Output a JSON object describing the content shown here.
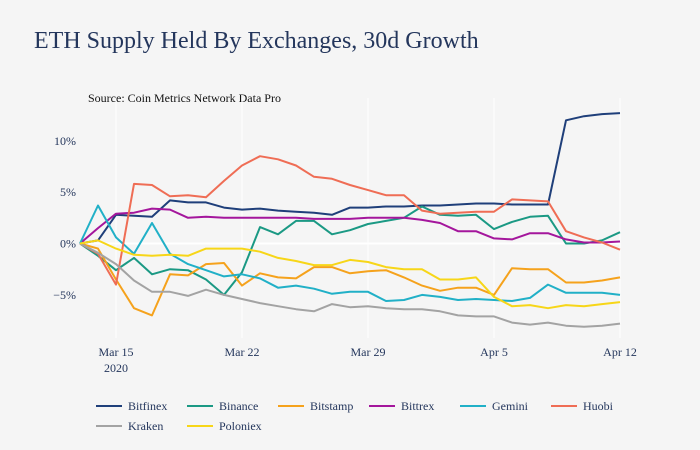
{
  "chart_data": {
    "type": "line",
    "title": "ETH Supply Held By Exchanges, 30d Growth",
    "subtitle": "Source: Coin Metrics Network Data Pro",
    "x": [
      "2020-03-13",
      "2020-03-14",
      "2020-03-15",
      "2020-03-16",
      "2020-03-17",
      "2020-03-18",
      "2020-03-19",
      "2020-03-20",
      "2020-03-21",
      "2020-03-22",
      "2020-03-23",
      "2020-03-24",
      "2020-03-25",
      "2020-03-26",
      "2020-03-27",
      "2020-03-28",
      "2020-03-29",
      "2020-03-30",
      "2020-03-31",
      "2020-04-01",
      "2020-04-02",
      "2020-04-03",
      "2020-04-04",
      "2020-04-05",
      "2020-04-06",
      "2020-04-07",
      "2020-04-08",
      "2020-04-09",
      "2020-04-10",
      "2020-04-11",
      "2020-04-12"
    ],
    "x_tick_labels": [
      "Mar 15",
      "Mar 22",
      "Mar 29",
      "Apr 5",
      "Apr 12"
    ],
    "x_tick_year": "2020",
    "x_tick_dates": [
      "2020-03-15",
      "2020-03-22",
      "2020-03-29",
      "2020-04-05",
      "2020-04-12"
    ],
    "y_ticks": [
      -5,
      0,
      5,
      10
    ],
    "y_tick_labels": [
      "−5%",
      "0%",
      "5%",
      "10%"
    ],
    "ylim": [
      -9.2,
      13
    ],
    "grid": "vertical",
    "legend_position": "bottom",
    "series": [
      {
        "name": "Bitfinex",
        "color": "#1f3f7a",
        "values": [
          0,
          0.3,
          2.8,
          2.7,
          2.6,
          4.2,
          4.0,
          4.0,
          3.5,
          3.3,
          3.4,
          3.2,
          3.1,
          3.0,
          2.8,
          3.5,
          3.5,
          3.6,
          3.6,
          3.7,
          3.7,
          3.8,
          3.9,
          3.9,
          3.8,
          3.8,
          3.8,
          12.0,
          12.4,
          12.6,
          12.7
        ]
      },
      {
        "name": "Binance",
        "color": "#1b9984",
        "values": [
          0,
          -1.2,
          -2.6,
          -1.4,
          -3.0,
          -2.5,
          -2.6,
          -3.5,
          -5.0,
          -2.8,
          1.6,
          0.9,
          2.2,
          2.2,
          0.9,
          1.3,
          1.9,
          2.2,
          2.5,
          3.6,
          2.8,
          2.7,
          2.8,
          1.4,
          2.1,
          2.6,
          2.7,
          0.0,
          0.0,
          0.3,
          1.1
        ]
      },
      {
        "name": "Bitstamp",
        "color": "#f5a21c",
        "values": [
          0,
          -0.5,
          -3.5,
          -6.3,
          -7.0,
          -3.0,
          -3.1,
          -2.0,
          -1.9,
          -4.1,
          -2.9,
          -3.3,
          -3.4,
          -2.3,
          -2.3,
          -2.9,
          -2.7,
          -2.6,
          -3.3,
          -4.1,
          -4.6,
          -4.3,
          -4.3,
          -5.0,
          -2.4,
          -2.5,
          -2.5,
          -3.8,
          -3.8,
          -3.6,
          -3.3
        ]
      },
      {
        "name": "Bittrex",
        "color": "#a4169c",
        "values": [
          0,
          1.5,
          2.9,
          3.0,
          3.4,
          3.3,
          2.5,
          2.6,
          2.5,
          2.5,
          2.5,
          2.5,
          2.5,
          2.4,
          2.4,
          2.4,
          2.5,
          2.5,
          2.5,
          2.3,
          2.0,
          1.2,
          1.2,
          0.5,
          0.4,
          1.0,
          1.0,
          0.4,
          0.1,
          0.1,
          0.2
        ]
      },
      {
        "name": "Gemini",
        "color": "#21b0c7",
        "values": [
          0,
          3.7,
          0.6,
          -1.0,
          2.0,
          -1.0,
          -2.0,
          -2.6,
          -3.2,
          -3.0,
          -3.4,
          -4.3,
          -4.1,
          -4.4,
          -4.9,
          -4.7,
          -4.7,
          -5.6,
          -5.5,
          -5.0,
          -5.2,
          -5.5,
          -5.4,
          -5.5,
          -5.6,
          -5.3,
          -4.0,
          -4.8,
          -4.8,
          -4.8,
          -5.0
        ]
      },
      {
        "name": "Huobi",
        "color": "#ef6d55",
        "values": [
          0,
          -1.0,
          -4.0,
          5.8,
          5.7,
          4.6,
          4.7,
          4.5,
          6.1,
          7.6,
          8.5,
          8.2,
          7.6,
          6.5,
          6.3,
          5.7,
          5.2,
          4.7,
          4.7,
          3.2,
          2.9,
          3.0,
          3.1,
          3.1,
          4.3,
          4.2,
          4.1,
          1.2,
          0.6,
          0.1,
          -0.6
        ]
      },
      {
        "name": "Kraken",
        "color": "#a3a3a3",
        "values": [
          0,
          -0.9,
          -2.0,
          -3.6,
          -4.7,
          -4.7,
          -5.1,
          -4.5,
          -5.0,
          -5.4,
          -5.8,
          -6.1,
          -6.4,
          -6.6,
          -5.9,
          -6.2,
          -6.1,
          -6.3,
          -6.4,
          -6.4,
          -6.6,
          -7.0,
          -7.1,
          -7.1,
          -7.7,
          -7.9,
          -7.7,
          -8.0,
          -8.1,
          -8.0,
          -7.8
        ]
      },
      {
        "name": "Poloniex",
        "color": "#f7d618",
        "values": [
          0,
          0.3,
          -0.5,
          -1.1,
          -1.2,
          -1.1,
          -1.2,
          -0.5,
          -0.5,
          -0.5,
          -0.8,
          -1.4,
          -1.7,
          -2.1,
          -2.1,
          -1.6,
          -1.8,
          -2.3,
          -2.5,
          -2.5,
          -3.5,
          -3.5,
          -3.3,
          -5.2,
          -6.1,
          -6.0,
          -6.3,
          -6.0,
          -6.1,
          -5.9,
          -5.7
        ]
      }
    ]
  }
}
